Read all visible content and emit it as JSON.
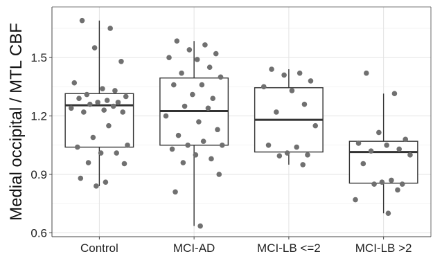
{
  "chart_data": {
    "type": "box",
    "ylabel": "Medial occipital / MTL CBF",
    "xlabel": "",
    "ylim": [
      0.58,
      1.76
    ],
    "yticks": [
      0.6,
      0.9,
      1.2,
      1.5
    ],
    "ytick_labels": [
      "0.6",
      "0.9",
      "1.2",
      "1.5"
    ],
    "grid": true,
    "categories": [
      "Control",
      "MCI-AD",
      "MCI-LB <=2",
      "MCI-LB >2"
    ],
    "boxes": [
      {
        "category": "Control",
        "whisker_low": 0.84,
        "q1": 1.04,
        "median": 1.255,
        "q3": 1.315,
        "whisker_high": 1.69
      },
      {
        "category": "MCI-AD",
        "whisker_low": 0.635,
        "q1": 1.05,
        "median": 1.225,
        "q3": 1.395,
        "whisker_high": 1.585
      },
      {
        "category": "MCI-LB <=2",
        "whisker_low": 0.95,
        "q1": 1.015,
        "median": 1.18,
        "q3": 1.345,
        "whisker_high": 1.44
      },
      {
        "category": "MCI-LB >2",
        "whisker_low": 0.7,
        "q1": 0.855,
        "median": 1.015,
        "q3": 1.07,
        "whisker_high": 1.315
      }
    ],
    "points": [
      {
        "category": "Control",
        "values": [
          1.69,
          1.65,
          1.55,
          1.48,
          1.37,
          1.34,
          1.33,
          1.31,
          1.3,
          1.29,
          1.28,
          1.27,
          1.27,
          1.26,
          1.25,
          1.24,
          1.23,
          1.22,
          1.22,
          1.15,
          1.09,
          1.05,
          1.04,
          1.01,
          1.01,
          0.96,
          0.955,
          0.88,
          0.86,
          0.84
        ]
      },
      {
        "category": "MCI-AD",
        "values": [
          1.585,
          1.565,
          1.54,
          1.52,
          1.5,
          1.49,
          1.45,
          1.42,
          1.4,
          1.36,
          1.36,
          1.31,
          1.29,
          1.25,
          1.24,
          1.2,
          1.17,
          1.13,
          1.1,
          1.07,
          1.05,
          1.05,
          1.03,
          1.0,
          0.98,
          0.96,
          0.9,
          0.81,
          0.635
        ]
      },
      {
        "category": "MCI-LB <=2",
        "values": [
          1.44,
          1.42,
          1.41,
          1.38,
          1.35,
          1.33,
          1.26,
          1.22,
          1.15,
          1.05,
          1.04,
          1.01,
          1.0,
          0.995,
          0.95
        ]
      },
      {
        "category": "MCI-LB >2",
        "values": [
          1.42,
          1.315,
          1.115,
          1.08,
          1.06,
          1.05,
          1.03,
          1.02,
          1.0,
          0.955,
          0.87,
          0.86,
          0.85,
          0.85,
          0.82,
          0.77,
          0.7
        ]
      }
    ],
    "colors": {
      "point": "#707070",
      "box_stroke": "#333333",
      "grid_major": "#e3e3e3",
      "grid_minor": "#f1f1f1",
      "axis": "#444444",
      "background": "#ffffff"
    }
  }
}
